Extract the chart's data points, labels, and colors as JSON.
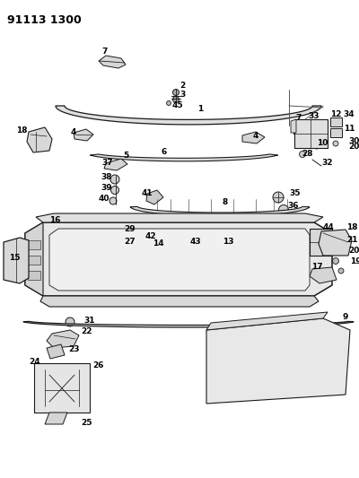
{
  "title_code": "91113 1300",
  "bg_color": "#ffffff",
  "line_color": "#1a1a1a",
  "text_color": "#000000",
  "title_fontsize": 9,
  "label_fontsize": 6.5,
  "fig_width": 4.0,
  "fig_height": 5.33,
  "dpi": 100
}
